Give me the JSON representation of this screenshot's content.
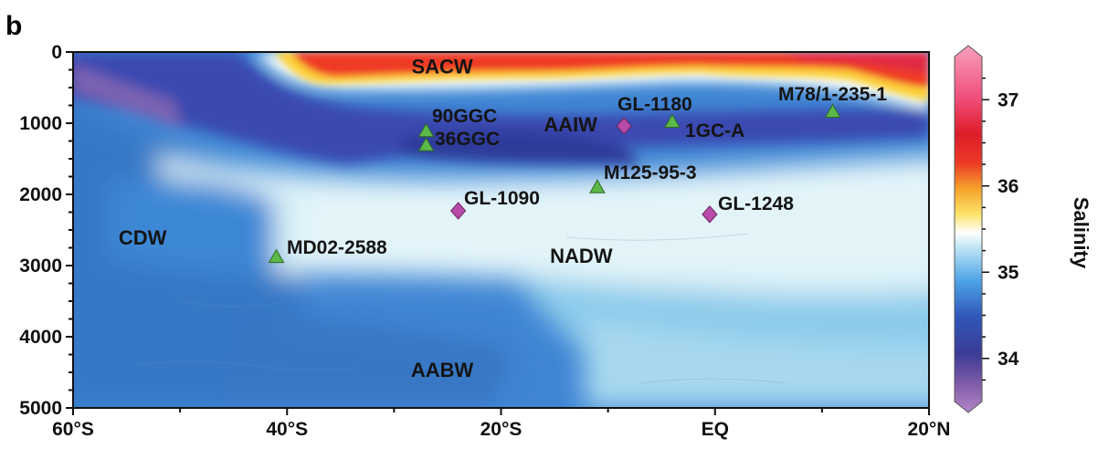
{
  "panel_label": "b",
  "colors": {
    "triangle_marker": "#5cb84a",
    "diamond_marker": "#b84aa8"
  },
  "chart_data": {
    "type": "heatmap",
    "variable": "Salinity",
    "colorbar": {
      "label": "Salinity",
      "ticks": [
        34,
        35,
        36,
        37
      ],
      "range": [
        33.5,
        37.5
      ]
    },
    "xlim": [
      -60,
      20
    ],
    "ylim": [
      0,
      5000
    ],
    "y_reversed": true,
    "xticks": [
      {
        "value": -60,
        "label": "60°S"
      },
      {
        "value": -40,
        "label": "40°S"
      },
      {
        "value": -20,
        "label": "20°S"
      },
      {
        "value": 0,
        "label": "EQ"
      },
      {
        "value": 20,
        "label": "20°N"
      }
    ],
    "yticks": [
      {
        "value": 0,
        "label": "0"
      },
      {
        "value": 1000,
        "label": "1000"
      },
      {
        "value": 2000,
        "label": "2000"
      },
      {
        "value": 3000,
        "label": "3000"
      },
      {
        "value": 4000,
        "label": "4000"
      },
      {
        "value": 5000,
        "label": "5000"
      }
    ],
    "water_masses": [
      {
        "label": "SACW",
        "x": -25.5,
        "depth": 200
      },
      {
        "label": "AAIW",
        "x": -13.5,
        "depth": 1010
      },
      {
        "label": "CDW",
        "x": -53.5,
        "depth": 2600
      },
      {
        "label": "NADW",
        "x": -12.5,
        "depth": 2860
      },
      {
        "label": "AABW",
        "x": -25.5,
        "depth": 4460
      }
    ],
    "sites": [
      {
        "name": "90GGC",
        "marker": "triangle",
        "x": -27,
        "depth": 1110
      },
      {
        "name": "36GGC",
        "marker": "triangle",
        "x": -27,
        "depth": 1310
      },
      {
        "name": "GL-1180",
        "marker": "diamond",
        "x": -8.5,
        "depth": 1040
      },
      {
        "name": "1GC-A",
        "marker": "triangle",
        "x": -4,
        "depth": 980
      },
      {
        "name": "M78/1-235-1",
        "marker": "triangle",
        "x": 11,
        "depth": 840
      },
      {
        "name": "M125-95-3",
        "marker": "triangle",
        "x": -11,
        "depth": 1900
      },
      {
        "name": "GL-1090",
        "marker": "diamond",
        "x": -24,
        "depth": 2230
      },
      {
        "name": "GL-1248",
        "marker": "diamond",
        "x": -0.5,
        "depth": 2280
      },
      {
        "name": "MD02-2588",
        "marker": "triangle",
        "x": -41,
        "depth": 2880
      }
    ]
  }
}
